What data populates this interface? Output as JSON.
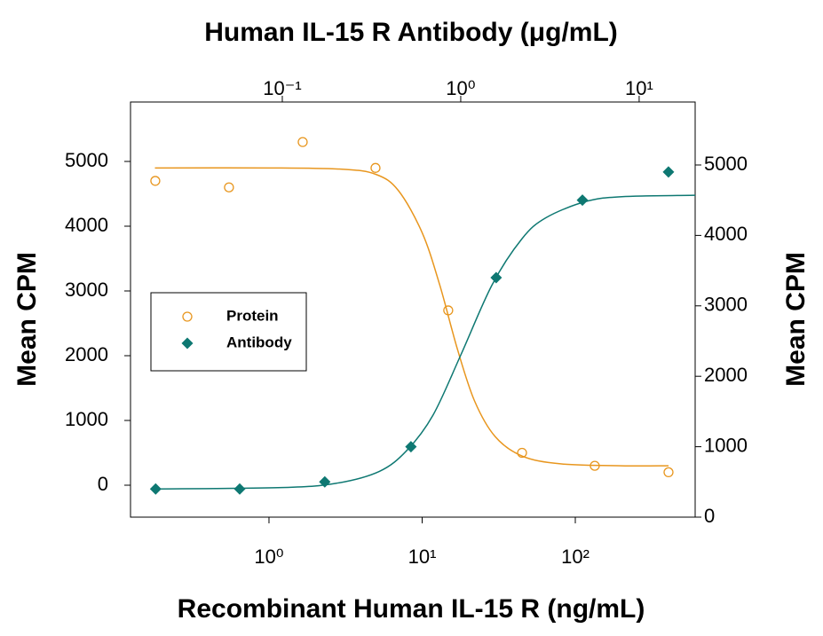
{
  "chart_data": {
    "type": "scatter",
    "title": "Human IL-15 R Antibody (μg/mL)",
    "xlabel": "Recombinant Human IL-15 R (ng/mL)",
    "ylabel": "Mean CPM",
    "y2label": "Mean CPM",
    "xscale": "log",
    "x2scale": "log",
    "xlim": [
      0.1247,
      606
    ],
    "xticks": [
      {
        "value": 1,
        "label": "10⁰"
      },
      {
        "value": 10,
        "label": "10¹"
      },
      {
        "value": 100,
        "label": "10²"
      }
    ],
    "x2lim": [
      0.0141,
      20.6
    ],
    "x2ticks": [
      {
        "value": 0.1,
        "label": "10⁻¹"
      },
      {
        "value": 1,
        "label": "10⁰"
      },
      {
        "value": 10,
        "label": "10¹"
      }
    ],
    "ylim": [
      -493,
      5918
    ],
    "yticks": [
      0,
      1000,
      2000,
      3000,
      4000,
      5000
    ],
    "y2lim": [
      0,
      5894
    ],
    "y2ticks": [
      0,
      1000,
      2000,
      3000,
      4000,
      5000
    ],
    "legend": "center-left",
    "series": [
      {
        "name": "Protein",
        "color": "#e8961e",
        "marker": "circle",
        "xaxis": "x",
        "axis": "y",
        "x": [
          0.181,
          0.548,
          1.66,
          4.96,
          14.8,
          44.9,
          134,
          406
        ],
        "values": [
          4700,
          4600,
          5300,
          4900,
          2700,
          500,
          300,
          200
        ],
        "fit_x": [
          0.18,
          1,
          3,
          5,
          7,
          10,
          13,
          17,
          22,
          30,
          45,
          80,
          200,
          406
        ],
        "fit_values": [
          4900,
          4900,
          4880,
          4800,
          4550,
          3900,
          3100,
          2100,
          1300,
          750,
          450,
          330,
          300,
          300
        ]
      },
      {
        "name": "Antibody",
        "color": "#0e7872",
        "marker": "diamond",
        "xaxis": "x2",
        "axis": "y2",
        "x": [
          0.0195,
          0.0577,
          0.173,
          0.526,
          1.58,
          4.81,
          14.6
        ],
        "values": [
          400,
          400,
          500,
          1000,
          3400,
          4500,
          4900
        ],
        "fit_x": [
          0.0195,
          0.1,
          0.2,
          0.35,
          0.5,
          0.7,
          1,
          1.5,
          2.2,
          3,
          5,
          8,
          20.6
        ],
        "fit_values": [
          400,
          420,
          480,
          650,
          950,
          1450,
          2300,
          3300,
          3950,
          4250,
          4480,
          4550,
          4570
        ]
      }
    ]
  }
}
